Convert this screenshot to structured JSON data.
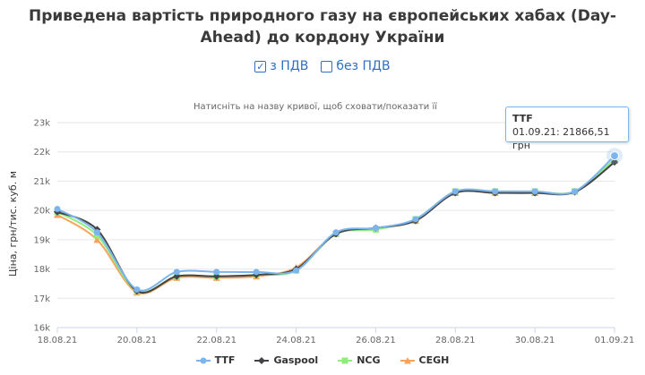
{
  "title": "Приведена вартість природного газу на європейських хабах (Day-Ahead) до кордону України",
  "vat_toggle": {
    "with_vat_label": "з ПДВ",
    "with_vat_checked": true,
    "without_vat_label": "без ПДВ",
    "without_vat_checked": false
  },
  "tooltip": {
    "series": "TTF",
    "text": "01.09.21: 21866,51 грн"
  },
  "chart_data": {
    "type": "line",
    "subtitle": "Натисніть на назву кривої, щоб сховати/показати її",
    "ylabel": "Ціна, грн/тис. куб. м",
    "xlabel": "",
    "ylim": [
      16000,
      23000
    ],
    "y_ticks": [
      "16k",
      "17k",
      "18k",
      "19k",
      "20k",
      "21k",
      "22k",
      "23k"
    ],
    "x_ticks": [
      "18.08.21",
      "20.08.21",
      "22.08.21",
      "24.08.21",
      "26.08.21",
      "28.08.21",
      "30.08.21",
      "01.09.21"
    ],
    "x": [
      "18.08.21",
      "19.08.21",
      "20.08.21",
      "21.08.21",
      "22.08.21",
      "23.08.21",
      "24.08.21",
      "25.08.21",
      "26.08.21",
      "27.08.21",
      "28.08.21",
      "29.08.21",
      "30.08.21",
      "31.08.21",
      "01.09.21"
    ],
    "grid": true,
    "legend_position": "bottom-center",
    "series": [
      {
        "name": "TTF",
        "color": "#7cb5ec",
        "marker": "circle",
        "values": [
          20050,
          19250,
          17300,
          17900,
          17900,
          17900,
          17950,
          19250,
          19400,
          19700,
          20650,
          20650,
          20650,
          20650,
          21867
        ]
      },
      {
        "name": "Gaspool",
        "color": "#434348",
        "marker": "diamond",
        "values": [
          19950,
          19350,
          17250,
          17750,
          17750,
          17800,
          18000,
          19200,
          19400,
          19650,
          20600,
          20600,
          20600,
          20630,
          21650
        ]
      },
      {
        "name": "NCG",
        "color": "#90ed7d",
        "marker": "square",
        "values": [
          19950,
          19150,
          17250,
          17750,
          17750,
          17800,
          17950,
          19200,
          19350,
          19700,
          20650,
          20650,
          20650,
          20650,
          21750
        ]
      },
      {
        "name": "CEGH",
        "color": "#f7a35c",
        "marker": "triangle",
        "values": [
          19850,
          19000,
          17200,
          17700,
          17700,
          17750,
          18050,
          19200,
          19400,
          19650,
          20600,
          20600,
          20600,
          20650,
          21700
        ]
      }
    ]
  }
}
